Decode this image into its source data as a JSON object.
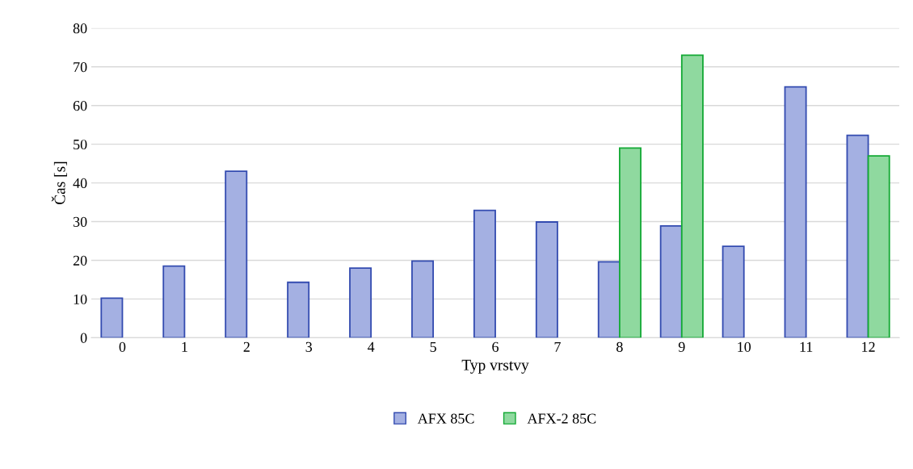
{
  "chart_data": {
    "type": "bar",
    "xlabel": "Typ vrstvy",
    "ylabel": "Čas [s]",
    "categories": [
      "0",
      "1",
      "2",
      "3",
      "4",
      "5",
      "6",
      "7",
      "8",
      "9",
      "10",
      "11",
      "12"
    ],
    "series": [
      {
        "name": "AFX 85C",
        "color": "#a4b0e2",
        "values": [
          10.2,
          18.5,
          43,
          14.3,
          18,
          19.8,
          32.9,
          29.9,
          19.6,
          28.9,
          23.6,
          64.8,
          52.3
        ]
      },
      {
        "name": "AFX-2 85C",
        "color": "#8fd99f",
        "values": [
          null,
          null,
          null,
          null,
          null,
          null,
          null,
          null,
          49,
          73,
          null,
          null,
          47
        ]
      }
    ],
    "ylim": [
      0,
      80
    ],
    "yticks": [
      0,
      10,
      20,
      30,
      40,
      50,
      60,
      70,
      80
    ],
    "grid": "y",
    "legend": "bottom"
  }
}
